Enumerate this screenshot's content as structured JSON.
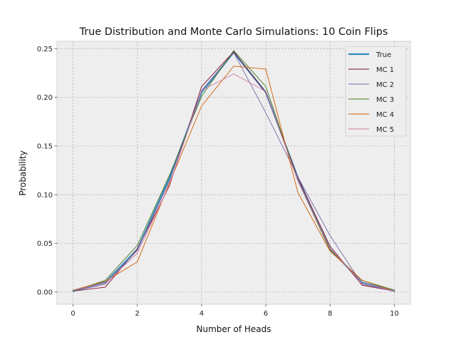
{
  "chart_data": {
    "type": "line",
    "title": "True Distribution and Monte Carlo Simulations: 10 Coin Flips",
    "xlabel": "Number of Heads",
    "ylabel": "Probability",
    "x": [
      0,
      1,
      2,
      3,
      4,
      5,
      6,
      7,
      8,
      9,
      10
    ],
    "xlim": [
      -0.5,
      10.5
    ],
    "ylim": [
      -0.0125,
      0.2575
    ],
    "xticks": [
      0,
      2,
      4,
      6,
      8,
      10
    ],
    "xtick_labels": [
      "0",
      "2",
      "4",
      "6",
      "8",
      "10"
    ],
    "yticks": [
      0.0,
      0.05,
      0.1,
      0.15,
      0.2,
      0.25
    ],
    "ytick_labels": [
      "0.00",
      "0.05",
      "0.10",
      "0.15",
      "0.20",
      "0.25"
    ],
    "grid": true,
    "legend_position": "top-right",
    "background": "#eeeeee",
    "series": [
      {
        "name": "True",
        "color": "#348abd",
        "width": 2.2,
        "values": [
          0.001,
          0.0098,
          0.0439,
          0.1172,
          0.2051,
          0.2461,
          0.2051,
          0.1172,
          0.0439,
          0.0098,
          0.001
        ]
      },
      {
        "name": "MC 1",
        "color": "#7a0c2e",
        "width": 0.9,
        "values": [
          0.001,
          0.005,
          0.044,
          0.109,
          0.211,
          0.247,
          0.205,
          0.117,
          0.047,
          0.007,
          0.001
        ]
      },
      {
        "name": "MC 2",
        "color": "#7a68a6",
        "width": 0.9,
        "values": [
          0.001,
          0.008,
          0.043,
          0.114,
          0.207,
          0.246,
          0.184,
          0.118,
          0.058,
          0.008,
          0.001
        ]
      },
      {
        "name": "MC 3",
        "color": "#467821",
        "width": 0.9,
        "values": [
          0.001,
          0.012,
          0.048,
          0.12,
          0.201,
          0.248,
          0.211,
          0.114,
          0.043,
          0.012,
          0.002
        ]
      },
      {
        "name": "MC 4",
        "color": "#d55e00",
        "width": 0.9,
        "values": [
          0.002,
          0.011,
          0.031,
          0.112,
          0.191,
          0.232,
          0.229,
          0.102,
          0.042,
          0.012,
          0.001
        ]
      },
      {
        "name": "MC 5",
        "color": "#cc79a7",
        "width": 0.9,
        "values": [
          0.002,
          0.009,
          0.04,
          0.11,
          0.207,
          0.224,
          0.206,
          0.114,
          0.045,
          0.009,
          0.001
        ]
      }
    ]
  }
}
